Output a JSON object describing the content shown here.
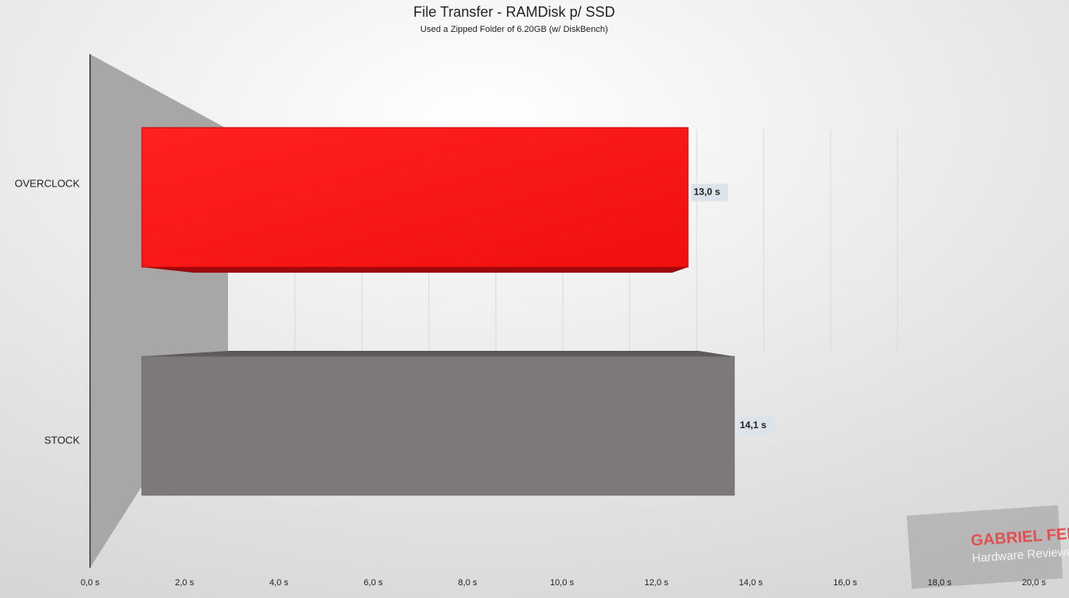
{
  "chart_data": {
    "type": "bar3d",
    "orientation": "horizontal",
    "title": "File Transfer - RAMDisk p/ SSD",
    "subtitle": "Used a Zipped Folder of 6.20GB (w/ DiskBench)",
    "categories": [
      "OVERCLOCK",
      "STOCK"
    ],
    "values": [
      13.0,
      14.1
    ],
    "value_labels": [
      "13,0 s",
      "14,1 s"
    ],
    "colors": [
      "#ff1a1a",
      "#7d7879"
    ],
    "xlim": [
      0,
      20
    ],
    "xticks": [
      {
        "value": 0,
        "label": "0,0 s"
      },
      {
        "value": 2,
        "label": "2,0 s"
      },
      {
        "value": 4,
        "label": "4,0 s"
      },
      {
        "value": 6,
        "label": "6,0 s"
      },
      {
        "value": 8,
        "label": "8,0 s"
      },
      {
        "value": 10,
        "label": "10,0 s"
      },
      {
        "value": 12,
        "label": "12,0 s"
      },
      {
        "value": 14,
        "label": "14,0 s"
      },
      {
        "value": 16,
        "label": "16,0 s"
      },
      {
        "value": 18,
        "label": "18,0 s"
      },
      {
        "value": 20,
        "label": "20,0 s"
      }
    ],
    "grid": true
  },
  "watermark": {
    "name": "GABRIEL FERRAZ",
    "role": "Hardware Reviewer"
  }
}
